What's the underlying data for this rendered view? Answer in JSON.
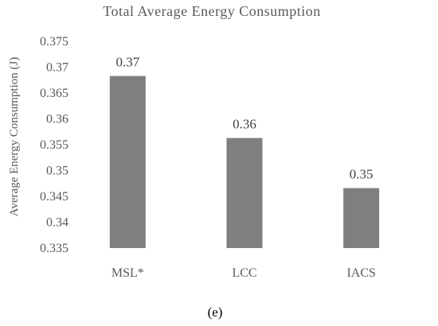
{
  "chart_data": {
    "type": "bar",
    "title": "Total Average Energy Consumption",
    "ylabel": "Average Energy Consumption (J)",
    "xlabel": "",
    "categories": [
      "MSL*",
      "LCC",
      "IACS"
    ],
    "values": [
      0.3683,
      0.3563,
      0.3466
    ],
    "data_labels": [
      "0.37",
      "0.36",
      "0.35"
    ],
    "ylim": [
      0.335,
      0.375
    ],
    "yticks": [
      "0.375",
      "0.37",
      "0.365",
      "0.36",
      "0.355",
      "0.35",
      "0.345",
      "0.34",
      "0.335"
    ],
    "bar_color": "#7f7f7f",
    "grid": false,
    "legend": "none"
  },
  "caption": "(e)"
}
